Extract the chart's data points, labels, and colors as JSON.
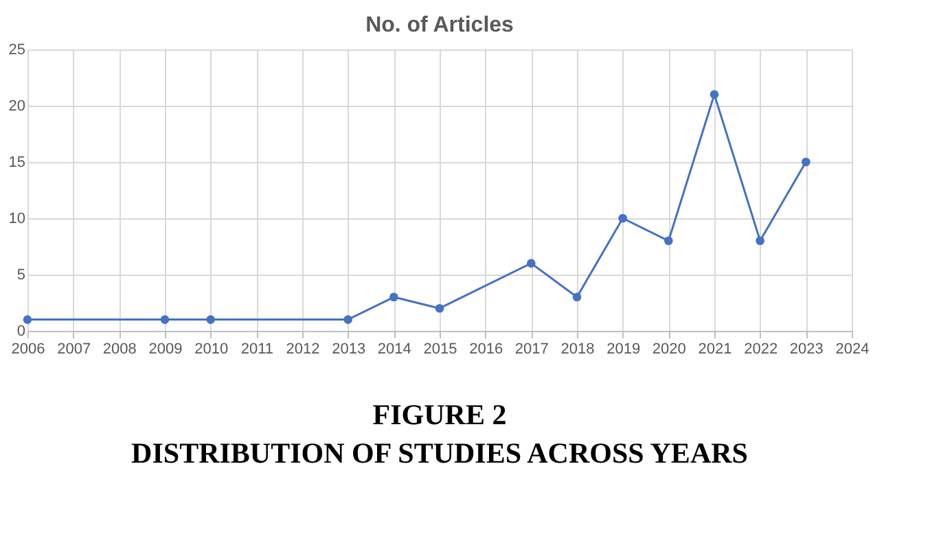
{
  "chart_data": {
    "type": "line",
    "title": "No. of Articles",
    "x": [
      2006,
      2009,
      2010,
      2013,
      2014,
      2015,
      2017,
      2018,
      2019,
      2020,
      2021,
      2022,
      2023
    ],
    "series": [
      {
        "color": "#4472c4",
        "values": [
          1,
          1,
          1,
          1,
          3,
          2,
          6,
          3,
          10,
          8,
          21,
          8,
          15
        ]
      }
    ],
    "xlim": [
      2006,
      2024
    ],
    "xticks": [
      2006,
      2007,
      2008,
      2009,
      2010,
      2011,
      2012,
      2013,
      2014,
      2015,
      2016,
      2017,
      2018,
      2019,
      2020,
      2021,
      2022,
      2023,
      2024
    ],
    "ylim": [
      0,
      25
    ],
    "yticks": [
      0,
      5,
      10,
      15,
      20,
      25
    ],
    "grid": true,
    "marker": "circle",
    "line_style": "solid",
    "annotations": [
      "FIGURE 2",
      "DISTRIBUTION OF STUDIES ACROSS YEARS"
    ]
  }
}
